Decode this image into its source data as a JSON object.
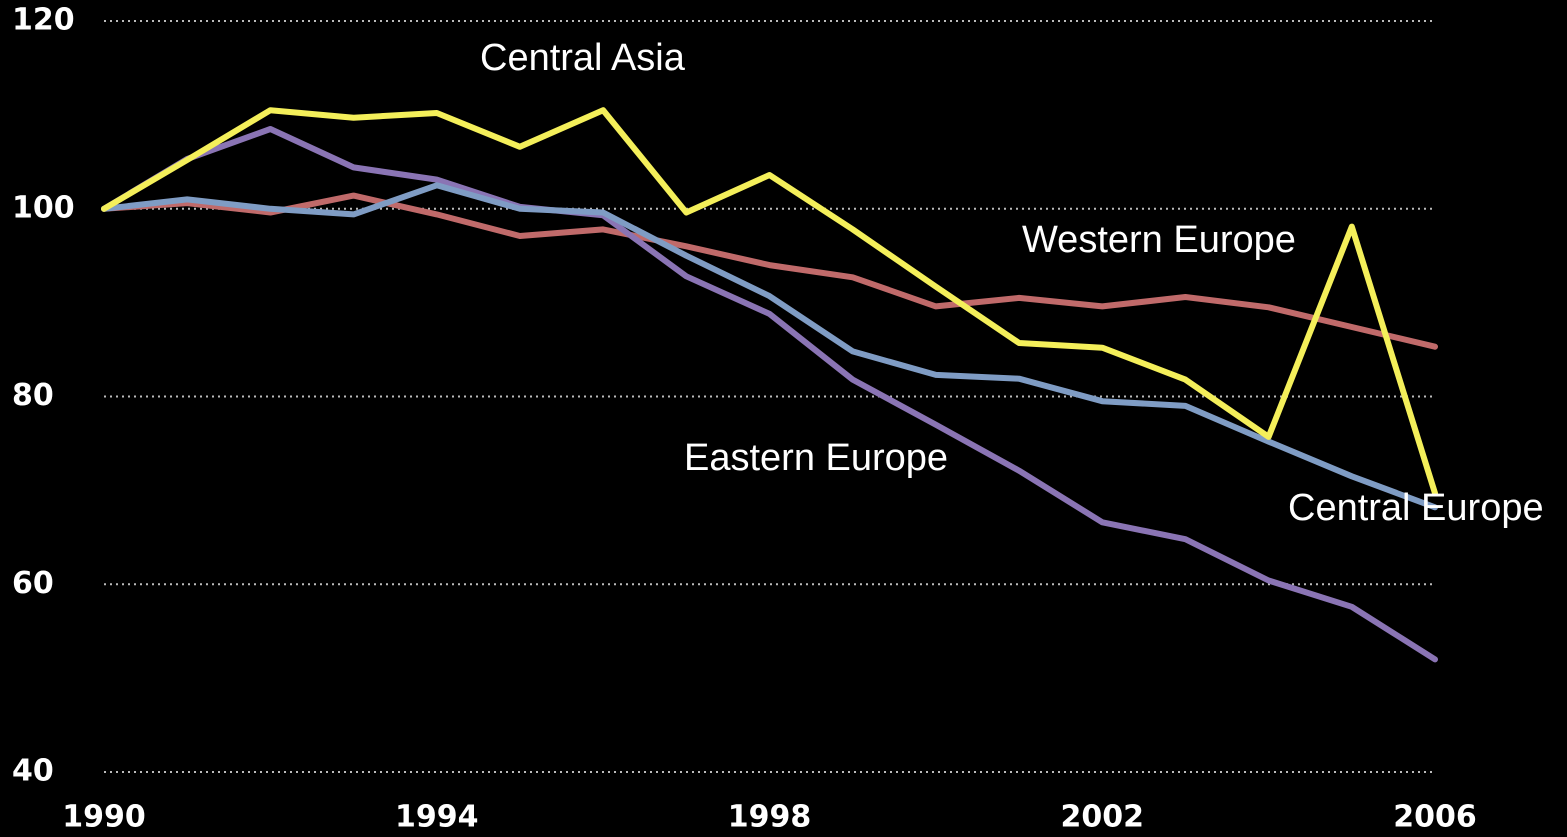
{
  "chart_data": {
    "type": "line",
    "x": [
      1990,
      1991,
      1992,
      1993,
      1994,
      1995,
      1996,
      1997,
      1998,
      1999,
      2000,
      2001,
      2002,
      2003,
      2004,
      2005,
      2006
    ],
    "xlim": [
      1990,
      2006
    ],
    "xticks": [
      1990,
      1994,
      1998,
      2002,
      2006
    ],
    "ylim": [
      40,
      120
    ],
    "yticks": [
      40,
      60,
      80,
      100,
      120
    ],
    "grid": true,
    "series": [
      {
        "name": "Western Europe",
        "color": "#c06a6a",
        "values": [
          100,
          100.6,
          99.6,
          101.4,
          99.4,
          97.1,
          97.8,
          96,
          94,
          92.7,
          89.6,
          90.5,
          89.6,
          90.6,
          89.5,
          87.4,
          85.3
        ]
      },
      {
        "name": "Eastern Europe",
        "color": "#8a74b4",
        "values": [
          100,
          105.3,
          108.5,
          104.4,
          103.1,
          100.2,
          99.3,
          92.8,
          88.8,
          81.8,
          77,
          72.1,
          66.6,
          64.8,
          60.4,
          57.6,
          52
        ]
      },
      {
        "name": "Central Europe",
        "color": "#7f9cc4",
        "values": [
          100,
          101,
          100,
          99.4,
          102.5,
          100,
          99.6,
          95,
          90.7,
          84.8,
          82.3,
          81.9,
          79.5,
          79,
          75.2,
          71.5,
          68.2
        ]
      },
      {
        "name": "Central Asia",
        "color": "#f4ef5a",
        "values": [
          100,
          105.2,
          110.5,
          109.7,
          110.2,
          106.6,
          110.5,
          99.6,
          103.6,
          97.8,
          91.7,
          85.7,
          85.2,
          81.8,
          75.7,
          98.1,
          69.7
        ]
      }
    ]
  }
}
